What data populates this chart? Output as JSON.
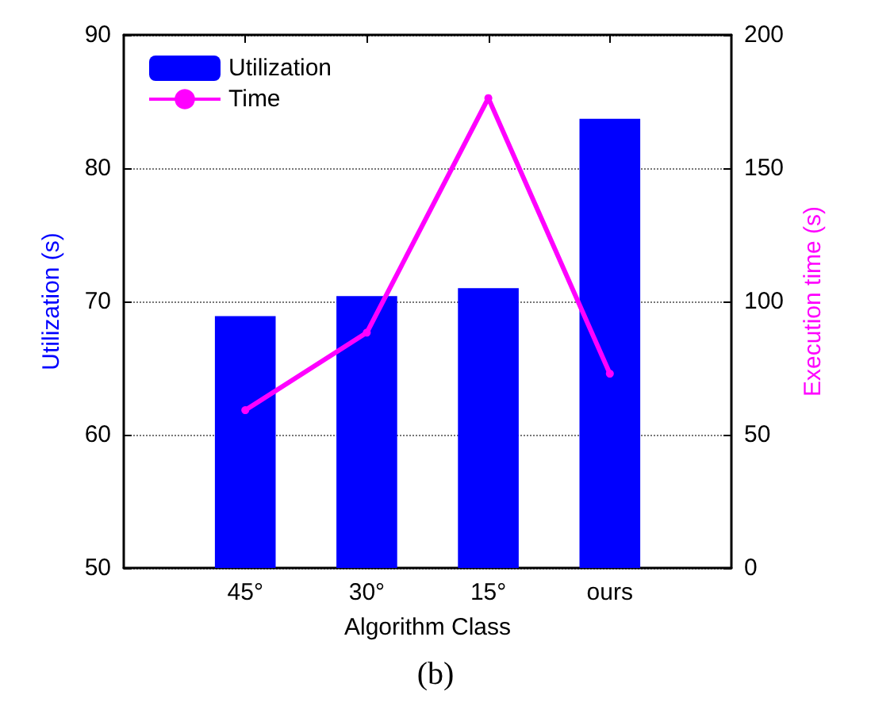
{
  "chart_data": {
    "type": "bar",
    "xlabel": "Algorithm Class",
    "ylabel": "Utilization (s)",
    "y2label": "Execution time (s)",
    "categories": [
      "45°",
      "30°",
      "15°",
      "ours"
    ],
    "series": [
      {
        "name": "Utilization",
        "color": "#0000ff",
        "values": [
          68.9,
          70.4,
          71.0,
          83.7
        ]
      },
      {
        "name": "Time",
        "type": "line",
        "axis": "y2",
        "color": "#ff00ff",
        "marker": "circle",
        "values": [
          59.2,
          88.3,
          176.3,
          72.9
        ]
      }
    ],
    "ylim": [
      50,
      90
    ],
    "yticks": [
      50,
      60,
      70,
      80,
      90
    ],
    "y2lim": [
      0,
      200
    ],
    "y2ticks": [
      0,
      50,
      100,
      150,
      200
    ],
    "grid": "y",
    "legend": "top left",
    "annotations": [
      "(b)"
    ]
  }
}
